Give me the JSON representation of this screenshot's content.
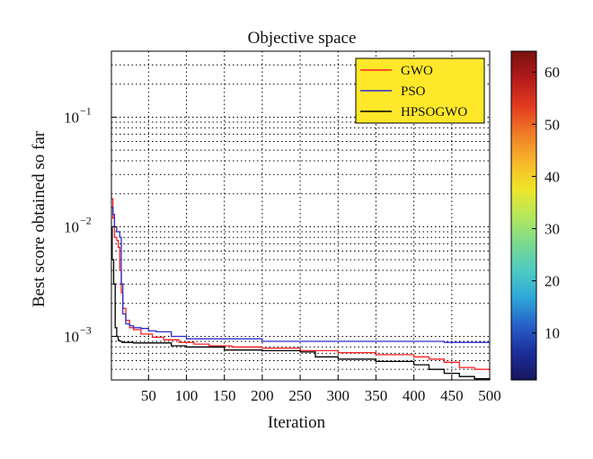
{
  "chart_data": {
    "type": "line",
    "title": "Objective space",
    "xlabel": "Iteration",
    "ylabel": "Best score obtained so far",
    "xlim": [
      1,
      500
    ],
    "ylim": [
      0.0004,
      0.4
    ],
    "yscale": "log",
    "grid": true,
    "legend_position": "top-right",
    "x_ticks": [
      50,
      100,
      150,
      200,
      250,
      300,
      350,
      400,
      450,
      500
    ],
    "y_ticks": [
      {
        "value": 0.1,
        "mantissa": "10",
        "exponent": "−1"
      },
      {
        "value": 0.01,
        "mantissa": "10",
        "exponent": "−2"
      },
      {
        "value": 0.001,
        "mantissa": "10",
        "exponent": "−3"
      }
    ],
    "series": [
      {
        "name": "GWO",
        "color": "#ff2020",
        "x": [
          1,
          3,
          5,
          8,
          10,
          12,
          14,
          16,
          20,
          25,
          30,
          40,
          55,
          70,
          90,
          110,
          130,
          160,
          200,
          250,
          300,
          350,
          400,
          420,
          440,
          460,
          480,
          500
        ],
        "y": [
          0.018,
          0.012,
          0.008,
          0.0075,
          0.0065,
          0.004,
          0.0025,
          0.0018,
          0.0014,
          0.0012,
          0.00115,
          0.00105,
          0.00098,
          0.00093,
          0.00088,
          0.00085,
          0.00082,
          0.0008,
          0.00078,
          0.00074,
          0.00071,
          0.00068,
          0.00065,
          0.00062,
          0.00058,
          0.00052,
          0.0005,
          0.00049
        ]
      },
      {
        "name": "PSO",
        "color": "#2c2cd0",
        "x": [
          1,
          3,
          5,
          8,
          12,
          14,
          16,
          20,
          25,
          30,
          40,
          50,
          60,
          80,
          100,
          150,
          200,
          250,
          300,
          350,
          400,
          430,
          440,
          460,
          480,
          500
        ],
        "y": [
          0.015,
          0.013,
          0.01,
          0.009,
          0.008,
          0.003,
          0.0016,
          0.0013,
          0.00125,
          0.0012,
          0.00118,
          0.00112,
          0.0011,
          0.001,
          0.00095,
          0.00095,
          0.0009,
          0.0009,
          0.0009,
          0.0009,
          0.0009,
          0.0009,
          0.00088,
          0.00088,
          0.00088,
          0.00088
        ]
      },
      {
        "name": "HPSOGWO",
        "color": "#000000",
        "x": [
          1,
          2,
          4,
          6,
          8,
          10,
          12,
          15,
          20,
          30,
          50,
          80,
          100,
          150,
          200,
          250,
          270,
          300,
          350,
          400,
          420,
          440,
          460,
          480,
          500
        ],
        "y": [
          0.01,
          0.005,
          0.003,
          0.0012,
          0.001,
          0.00092,
          0.0009,
          0.00088,
          0.00088,
          0.00087,
          0.00087,
          0.00082,
          0.0008,
          0.00075,
          0.00074,
          0.00072,
          0.00065,
          0.00062,
          0.00059,
          0.00055,
          0.0005,
          0.00046,
          0.00043,
          0.00041,
          0.0004
        ]
      }
    ],
    "colorbar": {
      "min": 1,
      "max": 64,
      "ticks": [
        10,
        20,
        30,
        40,
        50,
        60
      ],
      "colors": [
        "#17155f",
        "#1c2e9a",
        "#2760c8",
        "#2ea7d9",
        "#4ecbc2",
        "#7cd98e",
        "#b6e85a",
        "#f0e428",
        "#f7b52a",
        "#f07a27",
        "#e33b21",
        "#b31a1a",
        "#7a1111"
      ]
    }
  }
}
